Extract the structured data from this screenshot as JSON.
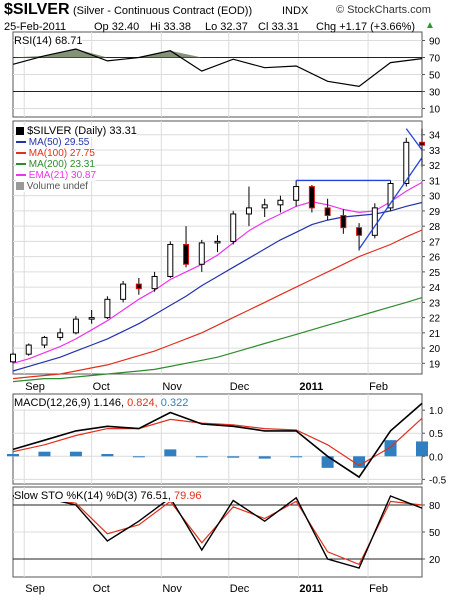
{
  "header": {
    "symbol": "$SILVER",
    "name": "(Silver - Continuous Contract (EOD))",
    "exchange": "INDX",
    "watermark": "© StockCharts.com",
    "date": "25-Feb-2011",
    "quote": {
      "open": "Op 32.40",
      "high": "Hi 33.38",
      "low": "Lo 32.37",
      "close": "Cl 33.31",
      "change": "Chg +1.17 (+3.66%)"
    },
    "change_arrow": "▲"
  },
  "colors": {
    "ma50": "#2233aa",
    "ma100": "#e0301e",
    "ma200": "#2e8b2e",
    "ema21": "#ee33ee",
    "candle": "#000000",
    "up": "#2a9a2a",
    "down": "#dd1111",
    "macd_signal": "#e0301e",
    "macd_hist": "#2f7fc1",
    "trend": "#2244dd",
    "grid": "#dcdcdc",
    "rsi_fill": "#6e7f60"
  },
  "months": [
    "Sep",
    "Oct",
    "Nov",
    "Dec",
    "2011",
    "Feb"
  ],
  "legend": {
    "price": "$SILVER (Daily) 33.31",
    "ma50": "MA(50) 29.55",
    "ma100": "MA(100) 27.75",
    "ma200": "MA(200) 23.31",
    "ema21": "EMA(21) 30.87",
    "volume": "Volume undef"
  },
  "rsi_label": "RSI(14) 68.71",
  "macd_label": {
    "main": "MACD(12,26,9) 1.146,",
    "signal": "0.824,",
    "hist": "0.322"
  },
  "sto_label": {
    "main": "Slow STO %K(14) %D(3) 76.51,",
    "d": "79.96"
  },
  "chart_data": [
    {
      "type": "line",
      "title": "RSI(14) 68.71",
      "ylim": [
        0,
        100
      ],
      "yticks": [
        90,
        70,
        50,
        30,
        10
      ],
      "x_dates": [
        "2010-08-27",
        "2010-09-10",
        "2010-09-24",
        "2010-10-08",
        "2010-10-22",
        "2010-11-05",
        "2010-11-19",
        "2010-12-03",
        "2010-12-17",
        "2010-12-31",
        "2011-01-14",
        "2011-01-28",
        "2011-02-11",
        "2011-02-25"
      ],
      "series": [
        {
          "name": "RSI(14)",
          "values": [
            62,
            72,
            80,
            66,
            70,
            78,
            54,
            68,
            58,
            60,
            42,
            36,
            64,
            68.71
          ]
        }
      ]
    },
    {
      "type": "candlestick",
      "title": "$SILVER (Daily) 33.31",
      "ylim": [
        18.3,
        34.9
      ],
      "yticks": [
        34,
        33,
        32,
        31,
        30,
        29,
        28,
        27,
        26,
        25,
        24,
        23,
        22,
        21,
        20,
        19
      ],
      "x_dates": [
        "2010-08-27",
        "2010-09-03",
        "2010-09-10",
        "2010-09-17",
        "2010-09-24",
        "2010-10-01",
        "2010-10-08",
        "2010-10-15",
        "2010-10-22",
        "2010-10-29",
        "2010-11-05",
        "2010-11-12",
        "2010-11-19",
        "2010-11-26",
        "2010-12-03",
        "2010-12-10",
        "2010-12-17",
        "2010-12-24",
        "2010-12-31",
        "2011-01-07",
        "2011-01-14",
        "2011-01-21",
        "2011-01-28",
        "2011-02-04",
        "2011-02-11",
        "2011-02-18",
        "2011-02-25"
      ],
      "ohlc": [
        [
          19.1,
          19.7,
          19.0,
          19.6
        ],
        [
          19.6,
          20.3,
          19.5,
          20.2
        ],
        [
          20.2,
          20.8,
          20.0,
          20.7
        ],
        [
          20.7,
          21.3,
          20.5,
          21.0
        ],
        [
          21.0,
          22.1,
          20.9,
          21.9
        ],
        [
          21.9,
          22.5,
          21.6,
          22.0
        ],
        [
          22.0,
          23.4,
          21.9,
          23.2
        ],
        [
          23.2,
          24.4,
          23.0,
          24.2
        ],
        [
          24.2,
          24.6,
          23.5,
          23.9
        ],
        [
          23.9,
          25.0,
          23.7,
          24.7
        ],
        [
          24.7,
          27.0,
          24.6,
          26.8
        ],
        [
          26.8,
          28.0,
          25.3,
          25.5
        ],
        [
          25.5,
          27.1,
          25.0,
          26.9
        ],
        [
          26.9,
          27.4,
          26.3,
          27.0
        ],
        [
          27.0,
          29.0,
          26.8,
          28.8
        ],
        [
          28.8,
          30.6,
          28.0,
          29.2
        ],
        [
          29.2,
          29.8,
          28.6,
          29.4
        ],
        [
          29.4,
          30.0,
          28.9,
          29.7
        ],
        [
          29.7,
          31.0,
          29.3,
          30.6
        ],
        [
          30.6,
          30.7,
          28.9,
          29.2
        ],
        [
          29.2,
          29.8,
          28.4,
          28.7
        ],
        [
          28.7,
          29.1,
          27.5,
          27.9
        ],
        [
          27.9,
          28.2,
          26.4,
          27.4
        ],
        [
          27.4,
          29.5,
          27.2,
          29.2
        ],
        [
          29.2,
          31.0,
          29.0,
          30.8
        ],
        [
          30.8,
          33.8,
          30.6,
          33.5
        ],
        [
          33.5,
          34.4,
          31.9,
          33.31
        ]
      ],
      "overlays": [
        {
          "name": "MA(50)",
          "values": [
            18.5,
            18.8,
            19.1,
            19.4,
            19.8,
            20.2,
            20.6,
            21.1,
            21.6,
            22.2,
            22.8,
            23.4,
            24.1,
            24.7,
            25.3,
            25.9,
            26.5,
            27.1,
            27.6,
            28.1,
            28.4,
            28.6,
            28.7,
            28.8,
            29.0,
            29.3,
            29.55
          ]
        },
        {
          "name": "MA(100)",
          "values": [
            18.0,
            18.1,
            18.2,
            18.3,
            18.5,
            18.7,
            18.9,
            19.2,
            19.5,
            19.8,
            20.2,
            20.6,
            21.0,
            21.5,
            22.0,
            22.5,
            23.0,
            23.5,
            24.0,
            24.5,
            25.0,
            25.5,
            26.0,
            26.4,
            26.8,
            27.3,
            27.75
          ]
        },
        {
          "name": "MA(200)",
          "values": [
            17.8,
            17.9,
            18.0,
            18.0,
            18.1,
            18.2,
            18.3,
            18.4,
            18.5,
            18.6,
            18.8,
            19.0,
            19.2,
            19.4,
            19.7,
            20.0,
            20.3,
            20.6,
            20.9,
            21.2,
            21.5,
            21.8,
            22.1,
            22.4,
            22.7,
            23.0,
            23.31
          ]
        },
        {
          "name": "EMA(21)",
          "values": [
            19.0,
            19.3,
            19.7,
            20.1,
            20.6,
            21.2,
            21.8,
            22.5,
            23.2,
            23.8,
            24.5,
            25.0,
            25.5,
            26.1,
            26.9,
            27.7,
            28.3,
            28.8,
            29.3,
            29.6,
            29.4,
            29.1,
            28.9,
            29.0,
            29.6,
            30.3,
            30.87
          ]
        }
      ],
      "annotations": [
        {
          "type": "horizontal_line",
          "value": 31.0,
          "from": "2010-12-31",
          "to": "2011-02-11"
        },
        {
          "type": "trendline",
          "points": [
            [
              "2011-01-28",
              26.5
            ],
            [
              "2011-02-25",
              32.5
            ]
          ]
        },
        {
          "type": "trendline",
          "points": [
            [
              "2011-02-18",
              34.4
            ],
            [
              "2011-02-25",
              33.0
            ]
          ]
        }
      ]
    },
    {
      "type": "line",
      "title": "MACD(12,26,9) 1.146, 0.824, 0.322",
      "ylim": [
        -0.6,
        1.35
      ],
      "yticks": [
        1.0,
        0.5,
        0.0,
        -0.5
      ],
      "x_dates": [
        "2010-08-27",
        "2010-09-10",
        "2010-09-24",
        "2010-10-08",
        "2010-10-22",
        "2010-11-05",
        "2010-11-19",
        "2010-12-03",
        "2010-12-17",
        "2010-12-31",
        "2011-01-14",
        "2011-01-28",
        "2011-02-11",
        "2011-02-25"
      ],
      "series": [
        {
          "name": "MACD",
          "values": [
            0.15,
            0.35,
            0.55,
            0.65,
            0.6,
            0.95,
            0.7,
            0.65,
            0.55,
            0.55,
            0.0,
            -0.45,
            0.55,
            1.146
          ]
        },
        {
          "name": "Signal",
          "values": [
            0.1,
            0.25,
            0.45,
            0.6,
            0.6,
            0.8,
            0.72,
            0.68,
            0.6,
            0.57,
            0.25,
            -0.2,
            0.2,
            0.824
          ]
        },
        {
          "name": "Histogram",
          "values": [
            0.05,
            0.1,
            0.1,
            0.05,
            0.0,
            0.15,
            -0.02,
            -0.03,
            -0.05,
            -0.02,
            -0.25,
            -0.25,
            0.35,
            0.322
          ]
        }
      ]
    },
    {
      "type": "line",
      "title": "Slow STO %K(14) %D(3) 76.51, 79.96",
      "ylim": [
        0,
        100
      ],
      "yticks": [
        80,
        50,
        20
      ],
      "x_dates": [
        "2010-08-27",
        "2010-09-10",
        "2010-09-24",
        "2010-10-08",
        "2010-10-22",
        "2010-11-05",
        "2010-11-19",
        "2010-12-03",
        "2010-12-17",
        "2010-12-31",
        "2011-01-14",
        "2011-01-28",
        "2011-02-11",
        "2011-02-25"
      ],
      "series": [
        {
          "name": "%K",
          "values": [
            90,
            88,
            80,
            40,
            62,
            88,
            30,
            85,
            62,
            88,
            20,
            10,
            90,
            76.51
          ]
        },
        {
          "name": "%D",
          "values": [
            86,
            87,
            82,
            48,
            58,
            84,
            38,
            78,
            65,
            84,
            28,
            14,
            84,
            79.96
          ]
        }
      ]
    }
  ]
}
